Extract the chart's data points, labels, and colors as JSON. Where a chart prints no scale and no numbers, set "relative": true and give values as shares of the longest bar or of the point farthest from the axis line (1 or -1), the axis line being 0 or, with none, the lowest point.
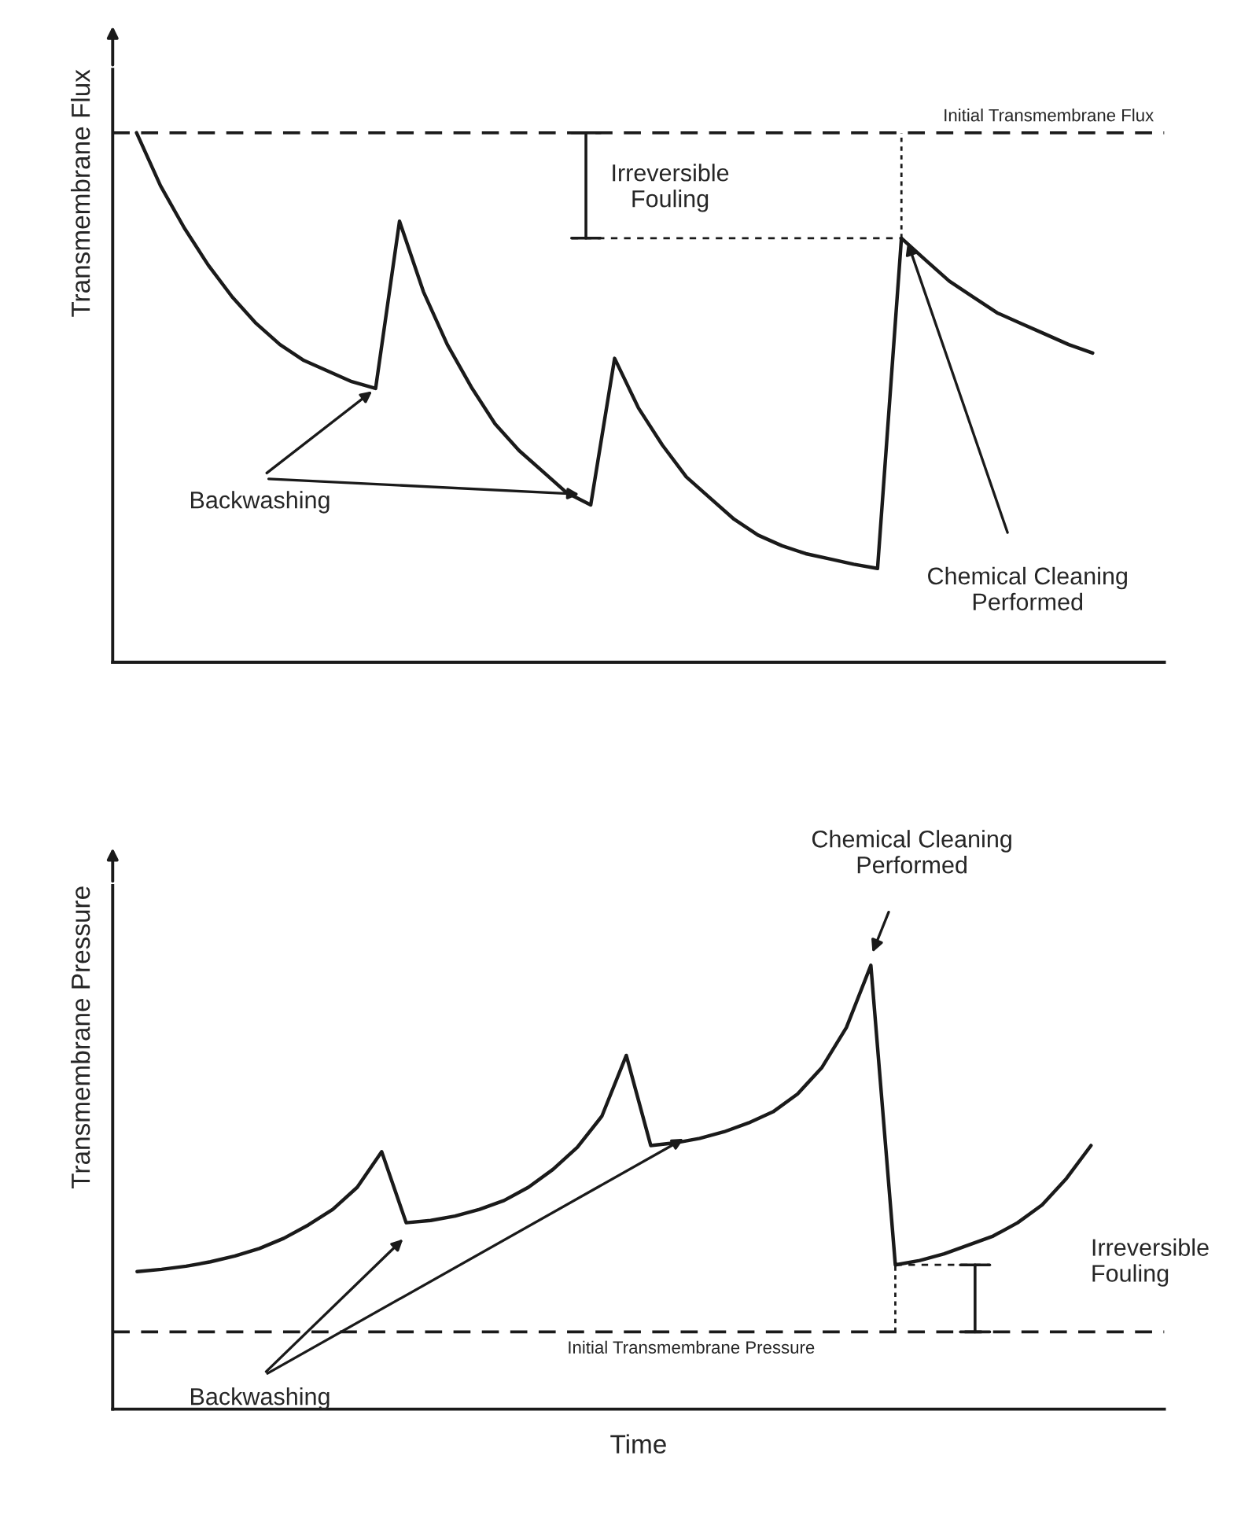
{
  "chart_data": [
    {
      "type": "line",
      "relative": true,
      "ylabel": "Transmembrane Flux",
      "categories": [
        null,
        null,
        null,
        null,
        null,
        null,
        null,
        null,
        null,
        null,
        null,
        null,
        null,
        null,
        null,
        null,
        null,
        null,
        null,
        null,
        null,
        null,
        null,
        null,
        null,
        null,
        null,
        null,
        null,
        null,
        null,
        null,
        null,
        null,
        null,
        null,
        null,
        null,
        null,
        null,
        null
      ],
      "series": [
        {
          "color": "#1a1a1a",
          "values": [
            1.0,
            0.9,
            0.82,
            0.75,
            0.69,
            0.64,
            0.6,
            0.57,
            0.55,
            0.53,
            0.517,
            0.833,
            0.7,
            0.6,
            0.52,
            0.45,
            0.4,
            0.36,
            0.32,
            0.297,
            0.574,
            0.48,
            0.41,
            0.35,
            0.31,
            0.27,
            0.24,
            0.22,
            0.205,
            0.195,
            0.185,
            0.177,
            0.801,
            0.76,
            0.72,
            0.69,
            0.66,
            0.64,
            0.62,
            0.6,
            0.584
          ]
        }
      ],
      "ref_lines": [
        {
          "axis": "y",
          "value": 1.0,
          "label": "Initial Transmembrane Flux",
          "line_style": "dashed",
          "color": "#1a1a1a"
        }
      ],
      "annotations": [
        "Irreversible Fouling",
        "Backwashing",
        "Chemical Cleaning Performed"
      ]
    },
    {
      "type": "line",
      "relative": true,
      "ylabel": "Transmembrane Pressure",
      "xlabel": "Time",
      "categories": [
        null,
        null,
        null,
        null,
        null,
        null,
        null,
        null,
        null,
        null,
        null,
        null,
        null,
        null,
        null,
        null,
        null,
        null,
        null,
        null,
        null,
        null,
        null,
        null,
        null,
        null,
        null,
        null,
        null,
        null,
        null,
        null,
        null,
        null,
        null,
        null,
        null,
        null,
        null,
        null
      ],
      "series": [
        {
          "color": "#1a1a1a",
          "values": [
            0.31,
            0.315,
            0.322,
            0.332,
            0.345,
            0.362,
            0.385,
            0.415,
            0.45,
            0.5,
            0.58,
            0.42,
            0.425,
            0.435,
            0.45,
            0.47,
            0.5,
            0.54,
            0.59,
            0.66,
            0.797,
            0.594,
            0.6,
            0.61,
            0.625,
            0.645,
            0.67,
            0.71,
            0.77,
            0.86,
            1.0,
            0.325,
            0.335,
            0.35,
            0.37,
            0.39,
            0.42,
            0.46,
            0.52,
            0.594
          ]
        }
      ],
      "ref_lines": [
        {
          "axis": "y",
          "value": 0.174,
          "label": "Initial Transmembrane Pressure",
          "line_style": "dashed",
          "color": "#1a1a1a"
        }
      ],
      "annotations": [
        "Irreversible Fouling",
        "Backwashing",
        "Chemical Cleaning Performed"
      ]
    }
  ]
}
